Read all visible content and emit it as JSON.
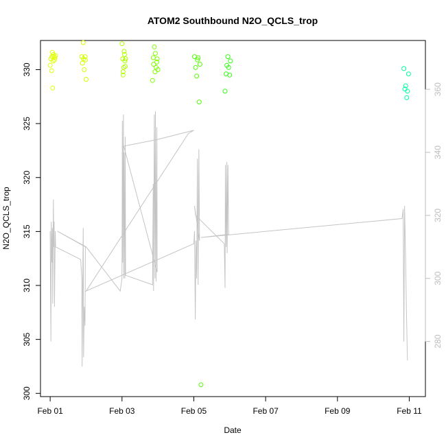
{
  "chart_data": {
    "type": "scatter",
    "title": "ATOM2 Southbound N2O_QCLS_trop",
    "xlabel": "Date",
    "ylabel": "N2O_QCLS_trop",
    "x_unit": "days",
    "xlim": [
      -0.27,
      10.45
    ],
    "ylim": [
      299.7,
      332.7
    ],
    "y2lim": [
      262.5,
      375.5
    ],
    "x_ticks": [
      {
        "value": 0,
        "label": "Feb 01"
      },
      {
        "value": 2,
        "label": "Feb 03"
      },
      {
        "value": 4,
        "label": "Feb 05"
      },
      {
        "value": 6,
        "label": "Feb 07"
      },
      {
        "value": 8,
        "label": "Feb 09"
      },
      {
        "value": 10,
        "label": "Feb 11"
      }
    ],
    "y_ticks": [
      300,
      305,
      310,
      315,
      320,
      325,
      330
    ],
    "y2_ticks": [
      280,
      300,
      320,
      340,
      360
    ],
    "series": [
      {
        "kind": "points",
        "x": [
          0.0,
          0.02,
          0.04,
          0.05,
          0.06,
          0.08,
          0.09,
          0.1,
          0.12,
          0.13,
          0.15,
          0.07,
          0.88,
          0.9,
          0.92,
          0.93,
          0.95,
          0.97,
          0.98,
          1.0,
          2.0,
          2.02,
          2.03,
          2.05,
          2.06,
          2.07,
          2.08,
          2.09,
          2.1,
          2.03,
          2.85,
          2.87,
          2.88,
          2.9,
          2.92,
          2.93,
          2.95,
          2.97,
          2.98,
          3.0,
          4.02,
          4.05,
          4.08,
          4.1,
          4.12,
          4.15,
          4.17,
          4.2,
          4.87,
          4.9,
          4.92,
          4.95,
          4.97,
          5.0,
          5.02,
          9.85,
          9.88,
          9.9,
          9.93,
          9.95,
          9.98
        ],
        "y": [
          330.4,
          331.0,
          329.9,
          331.2,
          331.6,
          330.8,
          331.4,
          331.2,
          330.9,
          331.1,
          331.3,
          328.3,
          331.2,
          330.6,
          332.5,
          331.0,
          330.0,
          331.2,
          330.9,
          329.1,
          332.4,
          331.0,
          329.8,
          330.2,
          331.7,
          331.4,
          330.8,
          330.3,
          331.0,
          329.5,
          329.0,
          331.1,
          330.5,
          332.1,
          329.8,
          331.5,
          330.2,
          330.7,
          331.0,
          330.0,
          331.2,
          330.2,
          329.4,
          330.9,
          331.1,
          327.0,
          330.5,
          300.8,
          328.0,
          329.6,
          330.4,
          331.2,
          330.2,
          329.5,
          330.8,
          330.1,
          328.2,
          328.5,
          327.4,
          328.0,
          329.6
        ],
        "colors": [
          "#e0ff00",
          "#e0ff00",
          "#e0ff00",
          "#e0ff00",
          "#e0ff00",
          "#e0ff00",
          "#e0ff00",
          "#e0ff00",
          "#e0ff00",
          "#e0ff00",
          "#e0ff00",
          "#e0ff00",
          "#d2ff00",
          "#d2ff00",
          "#d2ff00",
          "#d2ff00",
          "#d2ff00",
          "#d2ff00",
          "#d2ff00",
          "#d2ff00",
          "#b0ff00",
          "#b0ff00",
          "#b0ff00",
          "#b0ff00",
          "#b0ff00",
          "#b0ff00",
          "#b0ff00",
          "#b0ff00",
          "#b0ff00",
          "#b0ff00",
          "#80ff00",
          "#80ff00",
          "#80ff00",
          "#80ff00",
          "#80ff00",
          "#80ff00",
          "#80ff00",
          "#80ff00",
          "#80ff00",
          "#80ff00",
          "#50ff00",
          "#50ff00",
          "#50ff00",
          "#50ff00",
          "#50ff00",
          "#50ff00",
          "#50ff00",
          "#50ff00",
          "#30ff10",
          "#30ff10",
          "#30ff10",
          "#30ff10",
          "#30ff10",
          "#30ff10",
          "#30ff10",
          "#00ffa0",
          "#00ffa0",
          "#00ffa0",
          "#00ffa0",
          "#00ffa0",
          "#00ffa0"
        ]
      },
      {
        "kind": "line",
        "axis": "right",
        "color": "#c4c4c4",
        "x": [
          0.0,
          0.02,
          0.03,
          0.05,
          0.06,
          0.07,
          0.09,
          0.1,
          0.11,
          0.12,
          0.14,
          0.15,
          0.85,
          0.88,
          0.89,
          0.9,
          0.92,
          0.93,
          0.95,
          0.97,
          0.98,
          0.2,
          1.0,
          1.95,
          2.0,
          2.01,
          2.02,
          2.04,
          2.05,
          2.06,
          2.08,
          2.09,
          2.1,
          2.85,
          2.87,
          2.88,
          2.9,
          2.92,
          2.93,
          2.95,
          2.97,
          2.98,
          2.05,
          2.95,
          4.0,
          3.85,
          1.0,
          4.0,
          4.02,
          4.04,
          4.06,
          4.08,
          4.1,
          4.12,
          4.14,
          4.16,
          4.02,
          4.05,
          4.85,
          4.85,
          4.87,
          4.88,
          4.9,
          4.92,
          4.93,
          4.95,
          4.97,
          4.2,
          9.8,
          9.8,
          9.83,
          9.85,
          9.87,
          9.9,
          9.92,
          9.95
        ],
        "y": [
          315.0,
          280.0,
          318.0,
          305.0,
          316.0,
          292.0,
          325.0,
          310.0,
          318.0,
          291.0,
          315.0,
          310.0,
          306.0,
          300.0,
          272.0,
          290.0,
          316.0,
          275.0,
          291.0,
          285.0,
          310.0,
          315.0,
          310.0,
          296.0,
          300.0,
          350.0,
          305.0,
          352.0,
          300.0,
          340.0,
          300.0,
          345.0,
          301.0,
          298.0,
          330.0,
          296.0,
          352.0,
          300.0,
          353.0,
          299.0,
          348.0,
          302.0,
          342.0,
          344.0,
          347.0,
          346.0,
          296.0,
          311.0,
          315.0,
          287.0,
          312.0,
          300.0,
          338.0,
          298.0,
          341.0,
          312.0,
          323.0,
          320.0,
          311.0,
          311.0,
          297.0,
          336.0,
          310.0,
          337.0,
          308.0,
          336.0,
          314.0,
          313.0,
          319.0,
          319.0,
          322.0,
          280.0,
          323.0,
          306.0,
          290.0,
          274.0
        ]
      }
    ]
  }
}
